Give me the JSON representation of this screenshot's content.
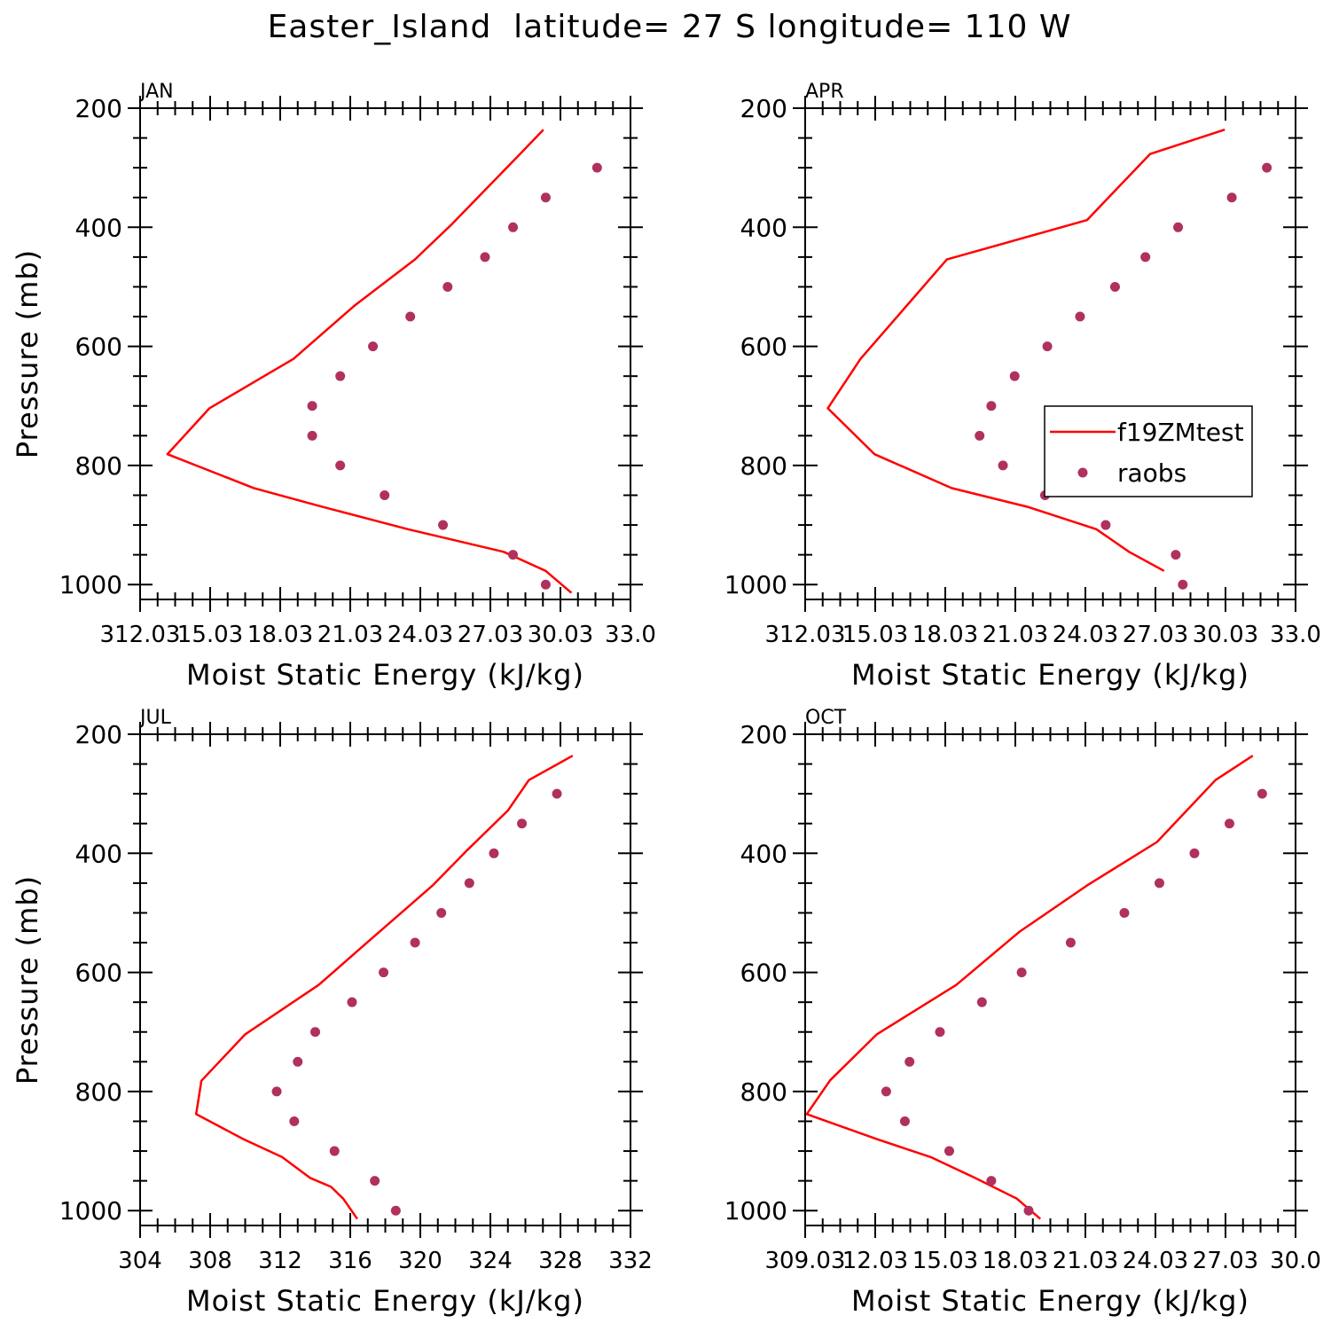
{
  "title": "Easter_Island  latitude= 27 S longitude= 110 W",
  "legend": {
    "model_label": "f19ZMtest",
    "obs_label": "raobs"
  },
  "colors": {
    "model": "#ff0000",
    "obs": "#b03060",
    "axis": "#000000"
  },
  "chart_data": [
    {
      "type": "line",
      "panel_label": "JAN",
      "xlabel": "Moist Static Energy (kJ/kg)",
      "ylabel": "Pressure (mb)",
      "xlim": [
        312.03,
        333.03
      ],
      "ylim": [
        1025,
        200
      ],
      "x_ticks": [
        312.03,
        315.03,
        318.03,
        321.03,
        324.03,
        327.03,
        330.03,
        333.03
      ],
      "x_tick_labels": [
        "312.03",
        "15.03",
        "18.03",
        "21.03",
        "24.03",
        "27.03",
        "30.03",
        "33.0"
      ],
      "y_ticks": [
        200,
        400,
        600,
        800,
        1000
      ],
      "y_tick_labels": [
        "200",
        "400",
        "600",
        "800",
        "1000"
      ],
      "show_legend": false,
      "series": [
        {
          "name": "f19ZMtest",
          "style": "line",
          "x": [
            329.3,
            328.3,
            325.4,
            323.8,
            321.2,
            318.6,
            315.0,
            313.2,
            316.9,
            319.7,
            323.5,
            327.6,
            329.4,
            330.5
          ],
          "y": [
            236,
            277,
            394,
            454,
            532,
            621,
            704,
            781,
            838,
            868,
            907,
            945,
            977,
            1014
          ]
        },
        {
          "name": "raobs",
          "style": "points",
          "x": [
            331.6,
            329.4,
            328.0,
            326.8,
            325.2,
            323.6,
            322.0,
            320.6,
            319.4,
            319.4,
            320.6,
            322.5,
            325.0,
            328.0,
            329.4
          ],
          "y": [
            300,
            350,
            400,
            450,
            500,
            550,
            600,
            650,
            700,
            750,
            800,
            850,
            900,
            950,
            1000
          ]
        }
      ]
    },
    {
      "type": "line",
      "panel_label": "APR",
      "xlabel": "Moist Static Energy (kJ/kg)",
      "ylabel": "",
      "xlim": [
        312.03,
        333.03
      ],
      "ylim": [
        1025,
        200
      ],
      "x_ticks": [
        312.03,
        315.03,
        318.03,
        321.03,
        324.03,
        327.03,
        330.03,
        333.03
      ],
      "x_tick_labels": [
        "312.03",
        "15.03",
        "18.03",
        "21.03",
        "24.03",
        "27.03",
        "30.03",
        "33.0"
      ],
      "y_ticks": [
        200,
        400,
        600,
        800,
        1000
      ],
      "y_tick_labels": [
        "200",
        "400",
        "600",
        "800",
        "1000"
      ],
      "show_legend": true,
      "series": [
        {
          "name": "f19ZMtest",
          "style": "line",
          "x": [
            330.0,
            326.8,
            324.1,
            318.1,
            314.4,
            313.0,
            315.0,
            318.3,
            321.6,
            324.5,
            325.9,
            327.4
          ],
          "y": [
            236,
            277,
            388,
            454,
            621,
            704,
            781,
            838,
            870,
            907,
            945,
            977
          ]
        },
        {
          "name": "raobs",
          "style": "points",
          "x": [
            331.8,
            330.3,
            328.0,
            326.6,
            325.3,
            323.8,
            322.4,
            321.0,
            320.0,
            319.5,
            320.5,
            322.3,
            324.9,
            327.9,
            328.2
          ],
          "y": [
            300,
            350,
            400,
            450,
            500,
            550,
            600,
            650,
            700,
            750,
            800,
            850,
            900,
            950,
            1000
          ]
        }
      ]
    },
    {
      "type": "line",
      "panel_label": "JUL",
      "xlabel": "Moist Static Energy (kJ/kg)",
      "ylabel": "Pressure (mb)",
      "xlim": [
        304,
        332
      ],
      "ylim": [
        1025,
        200
      ],
      "x_ticks": [
        304,
        308,
        312,
        316,
        320,
        324,
        328,
        332
      ],
      "x_tick_labels": [
        "304",
        "308",
        "312",
        "316",
        "320",
        "324",
        "328",
        "332"
      ],
      "y_ticks": [
        200,
        400,
        600,
        800,
        1000
      ],
      "y_tick_labels": [
        "200",
        "400",
        "600",
        "800",
        "1000"
      ],
      "show_legend": false,
      "series": [
        {
          "name": "f19ZMtest",
          "style": "line",
          "x": [
            328.7,
            326.2,
            325.0,
            322.7,
            320.7,
            316.6,
            314.2,
            310.0,
            307.5,
            307.2,
            309.9,
            312.1,
            313.7,
            314.9,
            315.6,
            316.4
          ],
          "y": [
            236,
            277,
            328,
            394,
            454,
            559,
            621,
            704,
            782,
            838,
            880,
            910,
            945,
            960,
            980,
            1014
          ]
        },
        {
          "name": "raobs",
          "style": "points",
          "x": [
            327.8,
            325.8,
            324.2,
            322.8,
            321.2,
            319.7,
            317.9,
            316.1,
            314.0,
            313.0,
            311.8,
            312.8,
            315.1,
            317.4,
            318.6
          ],
          "y": [
            300,
            350,
            400,
            450,
            500,
            550,
            600,
            650,
            700,
            750,
            800,
            850,
            900,
            950,
            1000
          ]
        }
      ]
    },
    {
      "type": "line",
      "panel_label": "OCT",
      "xlabel": "Moist Static Energy (kJ/kg)",
      "ylabel": "",
      "xlim": [
        309.03,
        330.03
      ],
      "ylim": [
        1025,
        200
      ],
      "x_ticks": [
        309.03,
        312.03,
        315.03,
        318.03,
        321.03,
        324.03,
        327.03,
        330.03
      ],
      "x_tick_labels": [
        "309.03",
        "12.03",
        "15.03",
        "18.03",
        "21.03",
        "24.03",
        "27.03",
        "30.0"
      ],
      "y_ticks": [
        200,
        400,
        600,
        800,
        1000
      ],
      "y_tick_labels": [
        "200",
        "400",
        "600",
        "800",
        "1000"
      ],
      "show_legend": false,
      "series": [
        {
          "name": "f19ZMtest",
          "style": "line",
          "x": [
            328.2,
            326.6,
            324.1,
            321.1,
            318.2,
            315.5,
            312.1,
            310.1,
            309.1,
            312.1,
            314.4,
            316.3,
            318.1,
            319.1
          ],
          "y": [
            236,
            277,
            381,
            454,
            532,
            621,
            704,
            781,
            838,
            880,
            910,
            945,
            980,
            1014
          ]
        },
        {
          "name": "raobs",
          "style": "points",
          "x": [
            328.6,
            327.2,
            325.7,
            324.2,
            322.7,
            320.4,
            318.3,
            316.6,
            314.8,
            313.5,
            312.5,
            313.3,
            315.2,
            317.0,
            318.6
          ],
          "y": [
            300,
            350,
            400,
            450,
            500,
            550,
            600,
            650,
            700,
            750,
            800,
            850,
            900,
            950,
            1000
          ]
        }
      ]
    }
  ]
}
